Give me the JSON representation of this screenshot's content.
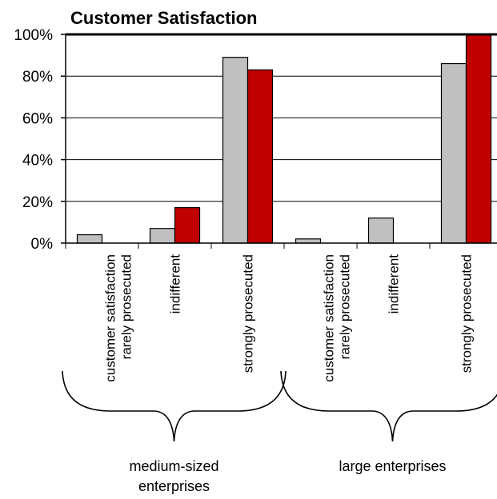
{
  "chart_data": {
    "type": "bar",
    "title": "Customer Satisfaction",
    "ylim": [
      0,
      100
    ],
    "yticks": [
      "0%",
      "20%",
      "40%",
      "60%",
      "80%",
      "100%"
    ],
    "grid": true,
    "categories": [
      [
        "customer satisfaction",
        "rarely prosecuted"
      ],
      [
        "indifferent"
      ],
      [
        "strongly prosecuted"
      ],
      [
        "customer satisfaction",
        "rarely prosecuted"
      ],
      [
        "indifferent"
      ],
      [
        "strongly prosecuted"
      ]
    ],
    "groups": [
      {
        "label": [
          "medium-sized",
          "enterprises"
        ],
        "categories": [
          0,
          1,
          2
        ]
      },
      {
        "label": [
          "large enterprises"
        ],
        "categories": [
          3,
          4,
          5
        ]
      }
    ],
    "series": [
      {
        "color": "#c0c0c0",
        "values": [
          4,
          7,
          89,
          2,
          12,
          86
        ]
      },
      {
        "color": "#c00000",
        "values": [
          0,
          17,
          83,
          0,
          0,
          100
        ]
      }
    ]
  }
}
